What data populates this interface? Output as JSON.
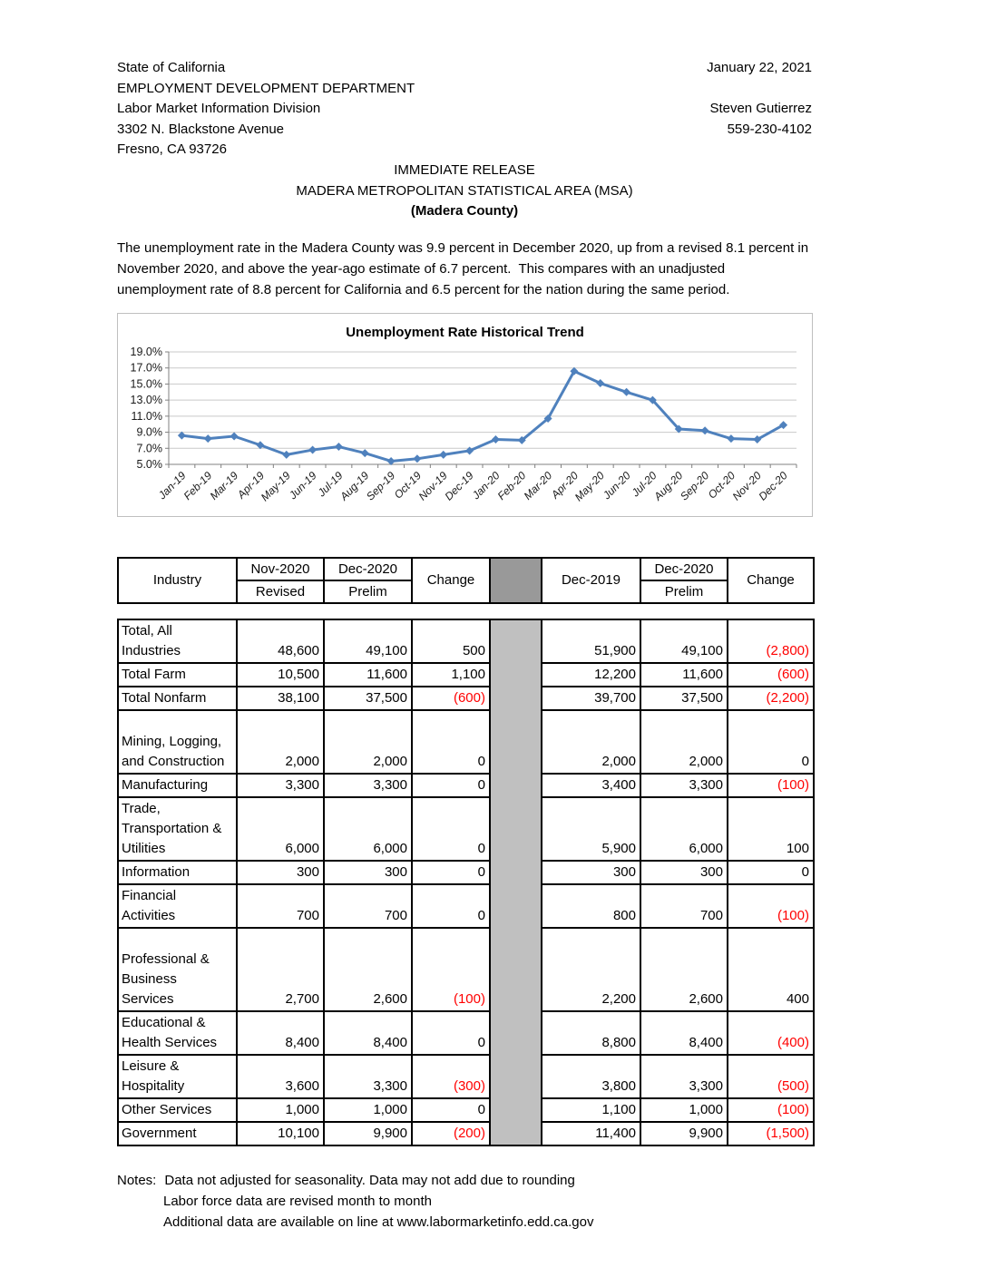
{
  "letterhead": {
    "left_lines": [
      "State of California",
      "EMPLOYMENT DEVELOPMENT DEPARTMENT",
      "Labor Market Information Division",
      "3302 N. Blackstone Avenue",
      "Fresno, CA 93726"
    ],
    "date": "January 22, 2021",
    "contact_name": "Steven Gutierrez",
    "contact_phone": "559-230-4102"
  },
  "release": {
    "line1": "IMMEDIATE RELEASE",
    "line2": "MADERA METROPOLITAN STATISTICAL AREA (MSA)",
    "line3": "(Madera County)"
  },
  "intro_paragraph": "The unemployment rate in the Madera County was 9.9 percent in December 2020, up from a revised 8.1 percent in November 2020, and above the year-ago estimate of 6.7 percent.  This compares with an unadjusted unemployment rate of 8.8 percent for California and 6.5 percent for the nation during the same period.",
  "chart_data": {
    "type": "line",
    "title": "Unemployment Rate Historical Trend",
    "x": [
      "Jan-19",
      "Feb-19",
      "Mar-19",
      "Apr-19",
      "May-19",
      "Jun-19",
      "Jul-19",
      "Aug-19",
      "Sep-19",
      "Oct-19",
      "Nov-19",
      "Dec-19",
      "Jan-20",
      "Feb-20",
      "Mar-20",
      "Apr-20",
      "May-20",
      "Jun-20",
      "Jul-20",
      "Aug-20",
      "Sep-20",
      "Oct-20",
      "Nov-20",
      "Dec-20"
    ],
    "series": [
      {
        "name": "Unemployment Rate",
        "values": [
          8.6,
          8.2,
          8.5,
          7.4,
          6.2,
          6.8,
          7.2,
          6.4,
          5.4,
          5.7,
          6.2,
          6.7,
          8.1,
          8.0,
          10.7,
          16.6,
          15.1,
          14.0,
          13.0,
          9.4,
          9.2,
          8.2,
          8.1,
          9.9
        ],
        "color": "#4f81bd"
      }
    ],
    "ylim": [
      5,
      19
    ],
    "ytick_step": 2,
    "ytick_labels": [
      "5.0%",
      "7.0%",
      "9.0%",
      "11.0%",
      "13.0%",
      "15.0%",
      "17.0%",
      "19.0%"
    ],
    "grid": true,
    "legend": "none",
    "grid_color": "#c9c9c9",
    "axis_color": "#808080",
    "xlabel": "",
    "ylabel": ""
  },
  "table": {
    "header": {
      "industry": "Industry",
      "col2_top": "Nov-2020",
      "col2_bottom": "Revised",
      "col3_top": "Dec-2020",
      "col3_bottom": "Prelim",
      "col4": "Change",
      "col6": "Dec-2019",
      "col7_top": "Dec-2020",
      "col7_bottom": "Prelim",
      "col8": "Change"
    },
    "rows": [
      {
        "label_lines": [
          "Total, All",
          "Industries"
        ],
        "values": [
          "48,600",
          "49,100",
          "500",
          "51,900",
          "49,100",
          "(2,800)"
        ]
      },
      {
        "label_lines": [
          "Total Farm"
        ],
        "values": [
          "10,500",
          "11,600",
          "1,100",
          "12,200",
          "11,600",
          "(600)"
        ]
      },
      {
        "label_lines": [
          "Total Nonfarm"
        ],
        "values": [
          "38,100",
          "37,500",
          "(600)",
          "39,700",
          "37,500",
          "(2,200)"
        ]
      },
      {
        "label_lines": [
          "",
          "Mining, Logging,",
          "and Construction"
        ],
        "values": [
          "2,000",
          "2,000",
          "0",
          "2,000",
          "2,000",
          "0"
        ]
      },
      {
        "label_lines": [
          "Manufacturing"
        ],
        "values": [
          "3,300",
          "3,300",
          "0",
          "3,400",
          "3,300",
          "(100)"
        ]
      },
      {
        "label_lines": [
          "Trade,",
          "Transportation &",
          "Utilities"
        ],
        "values": [
          "6,000",
          "6,000",
          "0",
          "5,900",
          "6,000",
          "100"
        ]
      },
      {
        "label_lines": [
          "Information"
        ],
        "values": [
          "300",
          "300",
          "0",
          "300",
          "300",
          "0"
        ]
      },
      {
        "label_lines": [
          "Financial",
          "Activities"
        ],
        "values": [
          "700",
          "700",
          "0",
          "800",
          "700",
          "(100)"
        ]
      },
      {
        "label_lines": [
          "",
          "Professional &",
          "Business Services"
        ],
        "values": [
          "2,700",
          "2,600",
          "(100)",
          "2,200",
          "2,600",
          "400"
        ]
      },
      {
        "label_lines": [
          "Educational &",
          "Health Services"
        ],
        "values": [
          "8,400",
          "8,400",
          "0",
          "8,800",
          "8,400",
          "(400)"
        ]
      },
      {
        "label_lines": [
          "Leisure &",
          "Hospitality"
        ],
        "values": [
          "3,600",
          "3,300",
          "(300)",
          "3,800",
          "3,300",
          "(500)"
        ]
      },
      {
        "label_lines": [
          "Other Services"
        ],
        "values": [
          "1,000",
          "1,000",
          "0",
          "1,100",
          "1,000",
          "(100)"
        ]
      },
      {
        "label_lines": [
          "Government"
        ],
        "values": [
          "10,100",
          "9,900",
          "(200)",
          "11,400",
          "9,900",
          "(1,500)"
        ]
      }
    ],
    "colors": {
      "header_spacer": "#999999",
      "body_spacer": "#c0c0c0",
      "negative": "#ff0000"
    }
  },
  "notes": {
    "label": "Notes:",
    "line1": "Data not adjusted for seasonality. Data may not add due to rounding",
    "line2": "Labor force data are revised month to month",
    "line3": "Additional data are available on line at www.labormarketinfo.edd.ca.gov"
  }
}
